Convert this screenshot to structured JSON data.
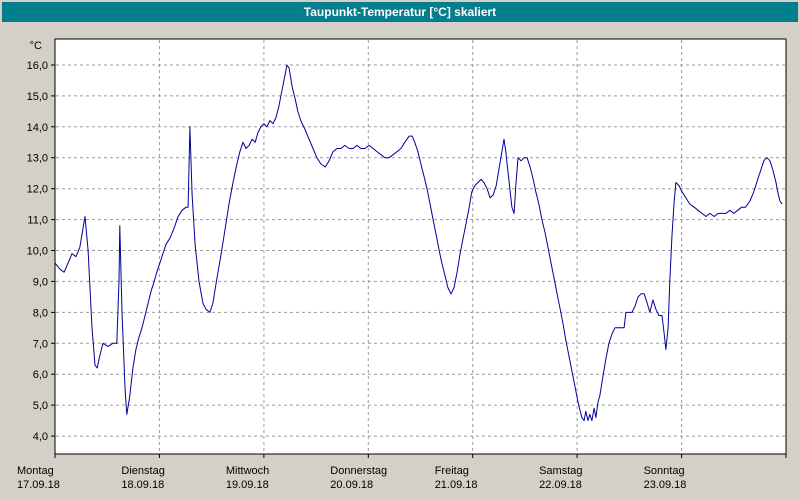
{
  "window": {
    "title": "Taupunkt-Temperatur [°C] skaliert"
  },
  "colors": {
    "titlebar_bg": "#047d8c",
    "titlebar_text": "#ffffff",
    "window_bg": "#d4d0c8",
    "plot_bg": "#ffffff",
    "grid": "#9b9b9b",
    "axis": "#000000",
    "axis_text": "#000000",
    "line": "#000099"
  },
  "chart_data": {
    "type": "line",
    "title": "Taupunkt-Temperatur [°C] skaliert",
    "xlabel": "",
    "ylabel": "°C",
    "ylim": [
      4.0,
      16.0
    ],
    "grid": true,
    "legend": "none",
    "y_axis": {
      "unit_label": "°C",
      "min": 4.0,
      "max": 16.0,
      "tick_step": 1.0,
      "tick_labels": [
        "16,0",
        "15,0",
        "14,0",
        "13,0",
        "12,0",
        "11,0",
        "10,0",
        "9,0",
        "8,0",
        "7,0",
        "6,0",
        "5,0",
        "4,0"
      ]
    },
    "x_axis": {
      "hours_total": 168,
      "days": [
        {
          "label": "Montag",
          "date": "17.09.18"
        },
        {
          "label": "Dienstag",
          "date": "18.09.18"
        },
        {
          "label": "Mittwoch",
          "date": "19.09.18"
        },
        {
          "label": "Donnerstag",
          "date": "20.09.18"
        },
        {
          "label": "Freitag",
          "date": "21.09.18"
        },
        {
          "label": "Samstag",
          "date": "22.09.18"
        },
        {
          "label": "Sonntag",
          "date": "23.09.18"
        }
      ]
    },
    "series": [
      {
        "name": "Taupunkt",
        "color": "#000099",
        "points": [
          [
            0,
            9.6
          ],
          [
            1.1,
            9.4
          ],
          [
            2.1,
            9.3
          ],
          [
            3,
            9.6
          ],
          [
            3.9,
            9.9
          ],
          [
            4.8,
            9.8
          ],
          [
            5.7,
            10.1
          ],
          [
            6.9,
            11.1
          ],
          [
            7.6,
            10
          ],
          [
            8.5,
            7.5
          ],
          [
            9.2,
            6.3
          ],
          [
            9.7,
            6.2
          ],
          [
            10.3,
            6.6
          ],
          [
            11,
            7
          ],
          [
            12.2,
            6.9
          ],
          [
            13.3,
            7
          ],
          [
            14.2,
            7
          ],
          [
            14.7,
            9
          ],
          [
            14.9,
            10.8
          ],
          [
            15.4,
            8
          ],
          [
            16.1,
            5.5
          ],
          [
            16.5,
            4.7
          ],
          [
            17.2,
            5.3
          ],
          [
            17.9,
            6.2
          ],
          [
            18.6,
            6.8
          ],
          [
            19.3,
            7.2
          ],
          [
            20,
            7.5
          ],
          [
            20.7,
            7.9
          ],
          [
            21.4,
            8.3
          ],
          [
            22.1,
            8.7
          ],
          [
            22.8,
            9
          ],
          [
            23.4,
            9.3
          ],
          [
            24.1,
            9.6
          ],
          [
            24.8,
            9.9
          ],
          [
            25.5,
            10.2
          ],
          [
            26.4,
            10.4
          ],
          [
            27.3,
            10.7
          ],
          [
            28.3,
            11.1
          ],
          [
            29.2,
            11.3
          ],
          [
            30.1,
            11.4
          ],
          [
            30.6,
            11.4
          ],
          [
            31,
            14
          ],
          [
            31.5,
            11.8
          ],
          [
            32.2,
            10.2
          ],
          [
            33.1,
            9
          ],
          [
            34,
            8.3
          ],
          [
            34.7,
            8.1
          ],
          [
            35.6,
            8
          ],
          [
            36.3,
            8.3
          ],
          [
            37.2,
            9.1
          ],
          [
            38.2,
            9.9
          ],
          [
            39.1,
            10.7
          ],
          [
            40,
            11.5
          ],
          [
            40.9,
            12.2
          ],
          [
            41.8,
            12.8
          ],
          [
            42.5,
            13.2
          ],
          [
            43.2,
            13.5
          ],
          [
            43.9,
            13.3
          ],
          [
            44.6,
            13.4
          ],
          [
            45.3,
            13.6
          ],
          [
            46,
            13.5
          ],
          [
            46.6,
            13.8
          ],
          [
            47.3,
            14
          ],
          [
            48,
            14.1
          ],
          [
            48.7,
            14
          ],
          [
            49.4,
            14.2
          ],
          [
            50.1,
            14.1
          ],
          [
            50.8,
            14.3
          ],
          [
            51.5,
            14.7
          ],
          [
            52.2,
            15.2
          ],
          [
            52.9,
            15.7
          ],
          [
            53.3,
            16
          ],
          [
            53.8,
            15.9
          ],
          [
            54.5,
            15.3
          ],
          [
            55.2,
            14.9
          ],
          [
            55.8,
            14.5
          ],
          [
            56.5,
            14.2
          ],
          [
            57.5,
            13.9
          ],
          [
            58.4,
            13.6
          ],
          [
            59.3,
            13.3
          ],
          [
            60.2,
            13
          ],
          [
            61.1,
            12.8
          ],
          [
            62.1,
            12.7
          ],
          [
            63,
            12.9
          ],
          [
            63.9,
            13.2
          ],
          [
            64.8,
            13.3
          ],
          [
            65.7,
            13.3
          ],
          [
            66.6,
            13.4
          ],
          [
            67.6,
            13.3
          ],
          [
            68.5,
            13.3
          ],
          [
            69.4,
            13.4
          ],
          [
            70.3,
            13.3
          ],
          [
            71.2,
            13.3
          ],
          [
            72.2,
            13.4
          ],
          [
            73.1,
            13.3
          ],
          [
            74,
            13.2
          ],
          [
            74.9,
            13.1
          ],
          [
            75.8,
            13
          ],
          [
            76.8,
            13
          ],
          [
            77.7,
            13.1
          ],
          [
            78.6,
            13.2
          ],
          [
            79.5,
            13.3
          ],
          [
            80.4,
            13.5
          ],
          [
            81.4,
            13.7
          ],
          [
            82.1,
            13.7
          ],
          [
            82.7,
            13.5
          ],
          [
            83.4,
            13.2
          ],
          [
            84.1,
            12.8
          ],
          [
            84.8,
            12.4
          ],
          [
            85.5,
            12
          ],
          [
            86.2,
            11.5
          ],
          [
            86.9,
            11
          ],
          [
            87.6,
            10.5
          ],
          [
            88.3,
            10
          ],
          [
            88.9,
            9.6
          ],
          [
            89.6,
            9.2
          ],
          [
            90.3,
            8.8
          ],
          [
            91,
            8.6
          ],
          [
            91.7,
            8.8
          ],
          [
            92.4,
            9.3
          ],
          [
            93.1,
            9.9
          ],
          [
            93.8,
            10.4
          ],
          [
            94.5,
            10.9
          ],
          [
            95.2,
            11.4
          ],
          [
            95.8,
            11.9
          ],
          [
            96.5,
            12.1
          ],
          [
            97.2,
            12.2
          ],
          [
            97.9,
            12.3
          ],
          [
            98.6,
            12.2
          ],
          [
            99.3,
            12
          ],
          [
            100,
            11.7
          ],
          [
            100.7,
            11.8
          ],
          [
            101.4,
            12.1
          ],
          [
            102,
            12.6
          ],
          [
            102.7,
            13.2
          ],
          [
            103.2,
            13.6
          ],
          [
            103.6,
            13.2
          ],
          [
            104.3,
            12.3
          ],
          [
            105,
            11.4
          ],
          [
            105.5,
            11.2
          ],
          [
            105.9,
            12.1
          ],
          [
            106.4,
            13
          ],
          [
            107.1,
            12.9
          ],
          [
            107.8,
            13
          ],
          [
            108.5,
            13
          ],
          [
            109.2,
            12.7
          ],
          [
            109.9,
            12.3
          ],
          [
            110.5,
            11.9
          ],
          [
            111.2,
            11.5
          ],
          [
            111.9,
            11
          ],
          [
            112.6,
            10.6
          ],
          [
            113.3,
            10.1
          ],
          [
            114,
            9.6
          ],
          [
            114.7,
            9.1
          ],
          [
            115.4,
            8.6
          ],
          [
            116.1,
            8.1
          ],
          [
            116.8,
            7.6
          ],
          [
            117.4,
            7.1
          ],
          [
            118.1,
            6.6
          ],
          [
            118.8,
            6.1
          ],
          [
            119.5,
            5.6
          ],
          [
            120.2,
            5.1
          ],
          [
            120.7,
            4.8
          ],
          [
            121.1,
            4.6
          ],
          [
            121.6,
            4.5
          ],
          [
            122,
            4.8
          ],
          [
            122.5,
            4.5
          ],
          [
            122.9,
            4.7
          ],
          [
            123.4,
            4.5
          ],
          [
            123.9,
            4.9
          ],
          [
            124.3,
            4.6
          ],
          [
            124.8,
            5.1
          ],
          [
            125.2,
            5.3
          ],
          [
            125.9,
            5.9
          ],
          [
            126.6,
            6.5
          ],
          [
            127.3,
            7
          ],
          [
            128,
            7.3
          ],
          [
            128.7,
            7.5
          ],
          [
            129.4,
            7.5
          ],
          [
            130.1,
            7.5
          ],
          [
            130.8,
            7.5
          ],
          [
            131.2,
            8
          ],
          [
            131.9,
            8
          ],
          [
            132.6,
            8
          ],
          [
            133.3,
            8.2
          ],
          [
            134,
            8.5
          ],
          [
            134.7,
            8.6
          ],
          [
            135.4,
            8.6
          ],
          [
            136.1,
            8.3
          ],
          [
            136.7,
            8
          ],
          [
            137.4,
            8.4
          ],
          [
            138.1,
            8.1
          ],
          [
            138.8,
            7.9
          ],
          [
            139.5,
            7.9
          ],
          [
            140,
            7.3
          ],
          [
            140.4,
            6.8
          ],
          [
            140.9,
            7.5
          ],
          [
            141.3,
            9
          ],
          [
            141.8,
            10.5
          ],
          [
            142.3,
            11.6
          ],
          [
            142.7,
            12.2
          ],
          [
            143.4,
            12.1
          ],
          [
            144.1,
            11.9
          ],
          [
            145,
            11.7
          ],
          [
            145.9,
            11.5
          ],
          [
            146.9,
            11.4
          ],
          [
            147.8,
            11.3
          ],
          [
            148.7,
            11.2
          ],
          [
            149.6,
            11.1
          ],
          [
            150.5,
            11.2
          ],
          [
            151.5,
            11.1
          ],
          [
            152.4,
            11.2
          ],
          [
            153.3,
            11.2
          ],
          [
            154.2,
            11.2
          ],
          [
            155.1,
            11.3
          ],
          [
            156,
            11.2
          ],
          [
            156.9,
            11.3
          ],
          [
            157.8,
            11.4
          ],
          [
            158.7,
            11.4
          ],
          [
            159.7,
            11.6
          ],
          [
            160.6,
            11.9
          ],
          [
            161.5,
            12.3
          ],
          [
            162.2,
            12.6
          ],
          [
            162.9,
            12.9
          ],
          [
            163.6,
            13
          ],
          [
            164.3,
            12.9
          ],
          [
            165,
            12.6
          ],
          [
            165.7,
            12.2
          ],
          [
            166.1,
            11.9
          ],
          [
            166.6,
            11.6
          ],
          [
            167.1,
            11.5
          ]
        ]
      }
    ]
  }
}
